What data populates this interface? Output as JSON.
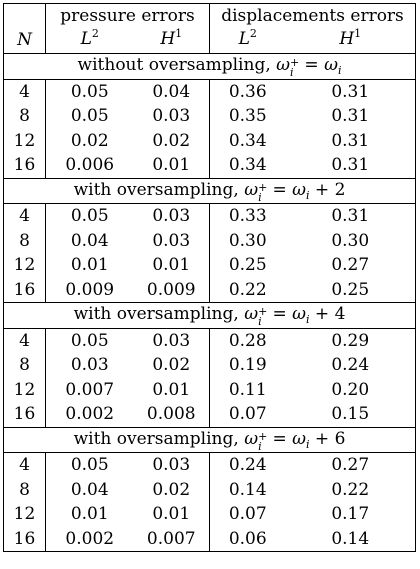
{
  "header": {
    "group_pressure": "pressure errors",
    "group_displacement": "displacements errors",
    "col_n": "N",
    "col_L": "L",
    "col_H": "H",
    "sup_2": "2",
    "sup_1": "1"
  },
  "sections": [
    {
      "title": "without oversampling, ",
      "omega": "ω",
      "plus": "+",
      "i": "i",
      "eq": " = ω",
      "i2": "i",
      "tail": "",
      "rows": [
        {
          "n": "4",
          "pL2": "0.05",
          "pH1": "0.04",
          "dL2": "0.36",
          "dH1": "0.31"
        },
        {
          "n": "8",
          "pL2": "0.05",
          "pH1": "0.03",
          "dL2": "0.35",
          "dH1": "0.31"
        },
        {
          "n": "12",
          "pL2": "0.02",
          "pH1": "0.02",
          "dL2": "0.34",
          "dH1": "0.31"
        },
        {
          "n": "16",
          "pL2": "0.006",
          "pH1": "0.01",
          "dL2": "0.34",
          "dH1": "0.31"
        }
      ]
    },
    {
      "title": "with oversampling, ",
      "omega": "ω",
      "plus": "+",
      "i": "i",
      "eq": " = ω",
      "i2": "i",
      "tail": " + 2",
      "rows": [
        {
          "n": "4",
          "pL2": "0.05",
          "pH1": "0.03",
          "dL2": "0.33",
          "dH1": "0.31"
        },
        {
          "n": "8",
          "pL2": "0.04",
          "pH1": "0.03",
          "dL2": "0.30",
          "dH1": "0.30"
        },
        {
          "n": "12",
          "pL2": "0.01",
          "pH1": "0.01",
          "dL2": "0.25",
          "dH1": "0.27"
        },
        {
          "n": "16",
          "pL2": "0.009",
          "pH1": "0.009",
          "dL2": "0.22",
          "dH1": "0.25"
        }
      ]
    },
    {
      "title": "with oversampling, ",
      "omega": "ω",
      "plus": "+",
      "i": "i",
      "eq": " = ω",
      "i2": "i",
      "tail": " + 4",
      "rows": [
        {
          "n": "4",
          "pL2": "0.05",
          "pH1": "0.03",
          "dL2": "0.28",
          "dH1": "0.29"
        },
        {
          "n": "8",
          "pL2": "0.03",
          "pH1": "0.02",
          "dL2": "0.19",
          "dH1": "0.24"
        },
        {
          "n": "12",
          "pL2": "0.007",
          "pH1": "0.01",
          "dL2": "0.11",
          "dH1": "0.20"
        },
        {
          "n": "16",
          "pL2": "0.002",
          "pH1": "0.008",
          "dL2": "0.07",
          "dH1": "0.15"
        }
      ]
    },
    {
      "title": "with oversampling, ",
      "omega": "ω",
      "plus": "+",
      "i": "i",
      "eq": " = ω",
      "i2": "i",
      "tail": " + 6",
      "rows": [
        {
          "n": "4",
          "pL2": "0.05",
          "pH1": "0.03",
          "dL2": "0.24",
          "dH1": "0.27"
        },
        {
          "n": "8",
          "pL2": "0.04",
          "pH1": "0.02",
          "dL2": "0.14",
          "dH1": "0.22"
        },
        {
          "n": "12",
          "pL2": "0.01",
          "pH1": "0.01",
          "dL2": "0.07",
          "dH1": "0.17"
        },
        {
          "n": "16",
          "pL2": "0.002",
          "pH1": "0.007",
          "dL2": "0.06",
          "dH1": "0.14"
        }
      ]
    }
  ]
}
